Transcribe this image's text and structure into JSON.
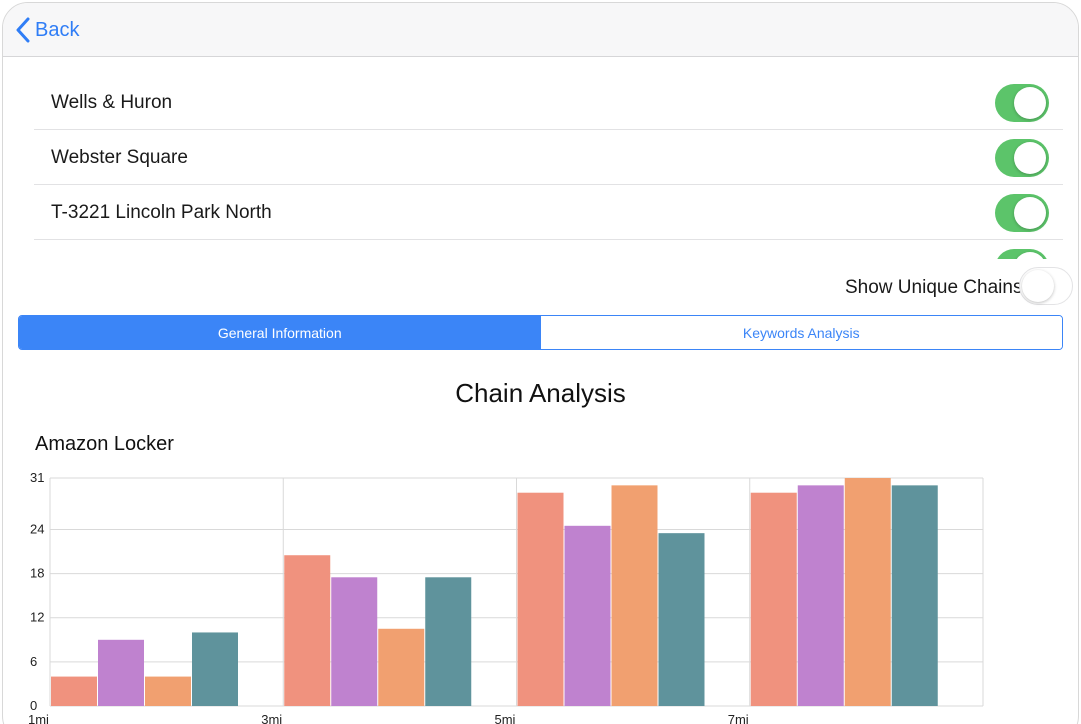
{
  "navbar": {
    "back_label": "Back"
  },
  "stores": [
    {
      "name": "Wells & Huron",
      "enabled": true
    },
    {
      "name": "Webster Square",
      "enabled": true
    },
    {
      "name": "T-3221 Lincoln Park North",
      "enabled": true
    },
    {
      "name": "",
      "enabled": true
    }
  ],
  "unique_chains": {
    "label": "Show Unique Chains",
    "enabled": false
  },
  "tabs": [
    {
      "label": "General Information",
      "active": true
    },
    {
      "label": "Keywords Analysis",
      "active": false
    }
  ],
  "section_title": "Chain Analysis",
  "chart_data": {
    "type": "bar",
    "title": "Amazon Locker",
    "categories": [
      "1mi",
      "3mi",
      "5mi",
      "7mi"
    ],
    "series": [
      {
        "values": [
          4,
          20.5,
          29,
          29
        ],
        "color": "#f0927e"
      },
      {
        "values": [
          9,
          17.5,
          24.5,
          30
        ],
        "color": "#bf82cf"
      },
      {
        "values": [
          4,
          10.5,
          30,
          31
        ],
        "color": "#f1a070"
      },
      {
        "values": [
          10,
          17.5,
          23.5,
          30
        ],
        "color": "#5f939c"
      }
    ],
    "ylim": [
      0,
      31
    ],
    "yticks": [
      0,
      6,
      12,
      18,
      24,
      31
    ],
    "grid": true
  },
  "colors": {
    "accent": "#3b85f7",
    "toggle_on": "#5cc46a"
  }
}
